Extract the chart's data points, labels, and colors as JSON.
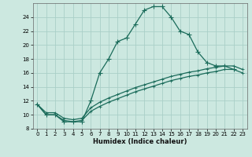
{
  "xlabel": "Humidex (Indice chaleur)",
  "bg_color": "#cce8e0",
  "grid_color": "#aacfc8",
  "line_color": "#1a6b5a",
  "xlim": [
    -0.5,
    23.5
  ],
  "ylim": [
    8,
    26
  ],
  "yticks": [
    8,
    10,
    12,
    14,
    16,
    18,
    20,
    22,
    24
  ],
  "xticks": [
    0,
    1,
    2,
    3,
    4,
    5,
    6,
    7,
    8,
    9,
    10,
    11,
    12,
    13,
    14,
    15,
    16,
    17,
    18,
    19,
    20,
    21,
    22,
    23
  ],
  "curve1_x": [
    0,
    1,
    2,
    3,
    4,
    5,
    6,
    7,
    8,
    9,
    10,
    11,
    12,
    13,
    14,
    15,
    16,
    17,
    18,
    19,
    20,
    21,
    22
  ],
  "curve1_y": [
    11.5,
    10.0,
    10.0,
    9.0,
    9.0,
    9.0,
    12.0,
    16.0,
    18.0,
    20.5,
    21.0,
    23.0,
    25.0,
    25.5,
    25.5,
    24.0,
    22.0,
    21.5,
    19.0,
    17.5,
    17.0,
    17.0,
    16.5
  ],
  "curve2_x": [
    0,
    1,
    2,
    3,
    4,
    5,
    6,
    7,
    8,
    9,
    10,
    11,
    12,
    13,
    14,
    15,
    16,
    17,
    18,
    19,
    20,
    21,
    22,
    23
  ],
  "curve2_y": [
    11.5,
    10.0,
    10.0,
    9.2,
    9.0,
    9.2,
    10.5,
    11.2,
    11.8,
    12.3,
    12.8,
    13.3,
    13.7,
    14.1,
    14.5,
    14.9,
    15.2,
    15.5,
    15.7,
    16.0,
    16.2,
    16.5,
    16.5,
    16.0
  ],
  "curve3_x": [
    0,
    1,
    2,
    3,
    4,
    5,
    6,
    7,
    8,
    9,
    10,
    11,
    12,
    13,
    14,
    15,
    16,
    17,
    18,
    19,
    20,
    21,
    22,
    23
  ],
  "curve3_y": [
    11.5,
    10.3,
    10.3,
    9.5,
    9.3,
    9.5,
    11.0,
    11.8,
    12.4,
    12.9,
    13.4,
    13.9,
    14.3,
    14.7,
    15.1,
    15.5,
    15.8,
    16.1,
    16.3,
    16.6,
    16.8,
    17.0,
    17.0,
    16.5
  ],
  "marker_size": 3,
  "line_width": 0.9,
  "tick_fontsize": 5,
  "xlabel_fontsize": 6
}
